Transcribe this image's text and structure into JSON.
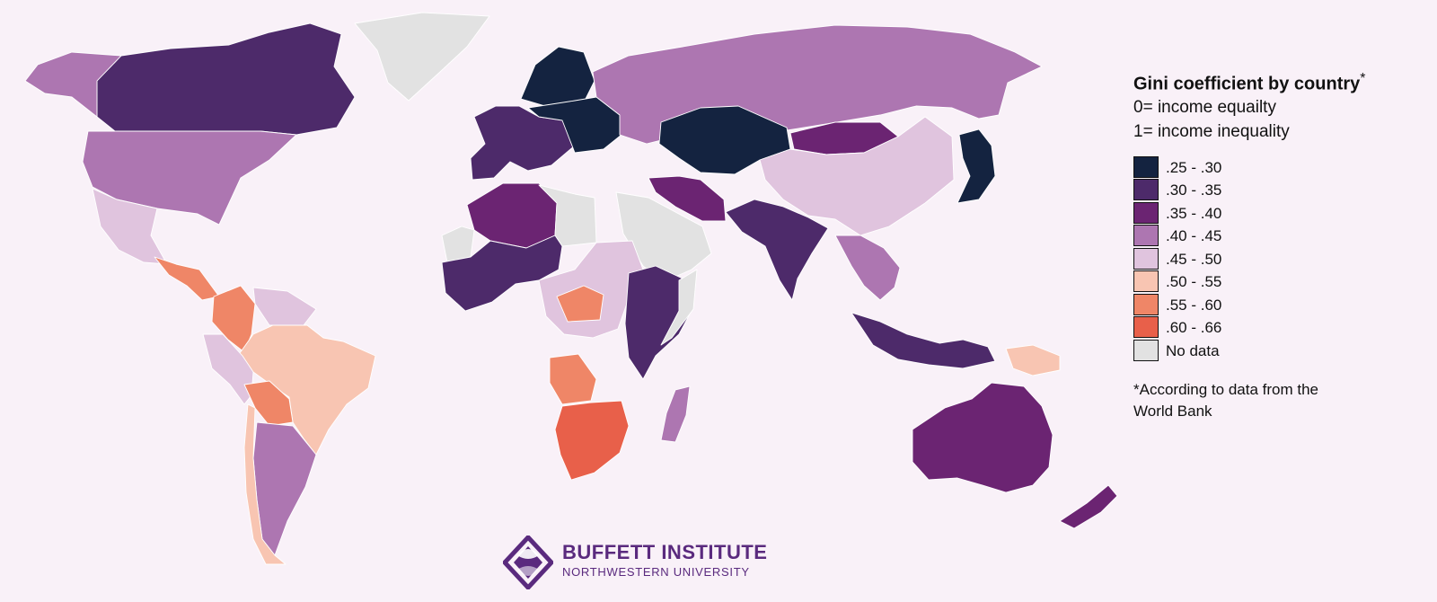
{
  "title": "Gini coefficient by country",
  "title_mark": "*",
  "subtitle_1": "0= income equailty",
  "subtitle_2": "1= income inequality",
  "note": "*According to data from the World Bank",
  "logo": {
    "name": "BUFFETT INSTITUTE",
    "sub": "NORTHWESTERN UNIVERSITY"
  },
  "legend": [
    {
      "label": ".25 - .30",
      "color": "#142340"
    },
    {
      "label": ".30 - .35",
      "color": "#4d2a6a"
    },
    {
      "label": ".35 - .40",
      "color": "#6b2472"
    },
    {
      "label": ".40 - .45",
      "color": "#ad76b1"
    },
    {
      "label": ".45 - .50",
      "color": "#e0c4de"
    },
    {
      "label": ".50 - .55",
      "color": "#f8c5b2"
    },
    {
      "label": ".55 - .60",
      "color": "#ef8667"
    },
    {
      "label": ".60 - .66",
      "color": "#e8604a"
    },
    {
      "label": "No data",
      "color": "#e2e2e2"
    }
  ],
  "colors": {
    "background": "#f9f1f8",
    "border": "#ffffff",
    "brand": "#5a2a7e"
  },
  "regions": [
    {
      "name": "Canada",
      "bin": 1
    },
    {
      "name": "United States",
      "bin": 3
    },
    {
      "name": "Alaska",
      "bin": 3
    },
    {
      "name": "Greenland",
      "bin": 8
    },
    {
      "name": "Mexico",
      "bin": 4
    },
    {
      "name": "Central America",
      "bin": 6
    },
    {
      "name": "Colombia",
      "bin": 6
    },
    {
      "name": "Venezuela",
      "bin": 4
    },
    {
      "name": "Brazil",
      "bin": 5
    },
    {
      "name": "Peru",
      "bin": 4
    },
    {
      "name": "Bolivia",
      "bin": 6
    },
    {
      "name": "Argentina",
      "bin": 3
    },
    {
      "name": "Chile",
      "bin": 5
    },
    {
      "name": "Western Europe",
      "bin": 1
    },
    {
      "name": "Scandinavia",
      "bin": 0
    },
    {
      "name": "Eastern Europe",
      "bin": 0
    },
    {
      "name": "Russia",
      "bin": 3
    },
    {
      "name": "Kazakhstan",
      "bin": 0
    },
    {
      "name": "Mongolia",
      "bin": 2
    },
    {
      "name": "China",
      "bin": 4
    },
    {
      "name": "Japan",
      "bin": 0
    },
    {
      "name": "India",
      "bin": 1
    },
    {
      "name": "Iran",
      "bin": 2
    },
    {
      "name": "Arabian Peninsula",
      "bin": 8
    },
    {
      "name": "Southeast Asia",
      "bin": 3
    },
    {
      "name": "Indonesia",
      "bin": 1
    },
    {
      "name": "Papua New Guinea",
      "bin": 5
    },
    {
      "name": "Australia",
      "bin": 2
    },
    {
      "name": "New Zealand",
      "bin": 2
    },
    {
      "name": "North Africa",
      "bin": 2
    },
    {
      "name": "Libya",
      "bin": 8
    },
    {
      "name": "Western Sahara",
      "bin": 8
    },
    {
      "name": "West Africa",
      "bin": 1
    },
    {
      "name": "Central Africa",
      "bin": 4
    },
    {
      "name": "Central African Republic",
      "bin": 6
    },
    {
      "name": "East Africa",
      "bin": 1
    },
    {
      "name": "Somalia",
      "bin": 8
    },
    {
      "name": "Angola",
      "bin": 6
    },
    {
      "name": "Southern Africa",
      "bin": 7
    },
    {
      "name": "Madagascar",
      "bin": 3
    }
  ]
}
